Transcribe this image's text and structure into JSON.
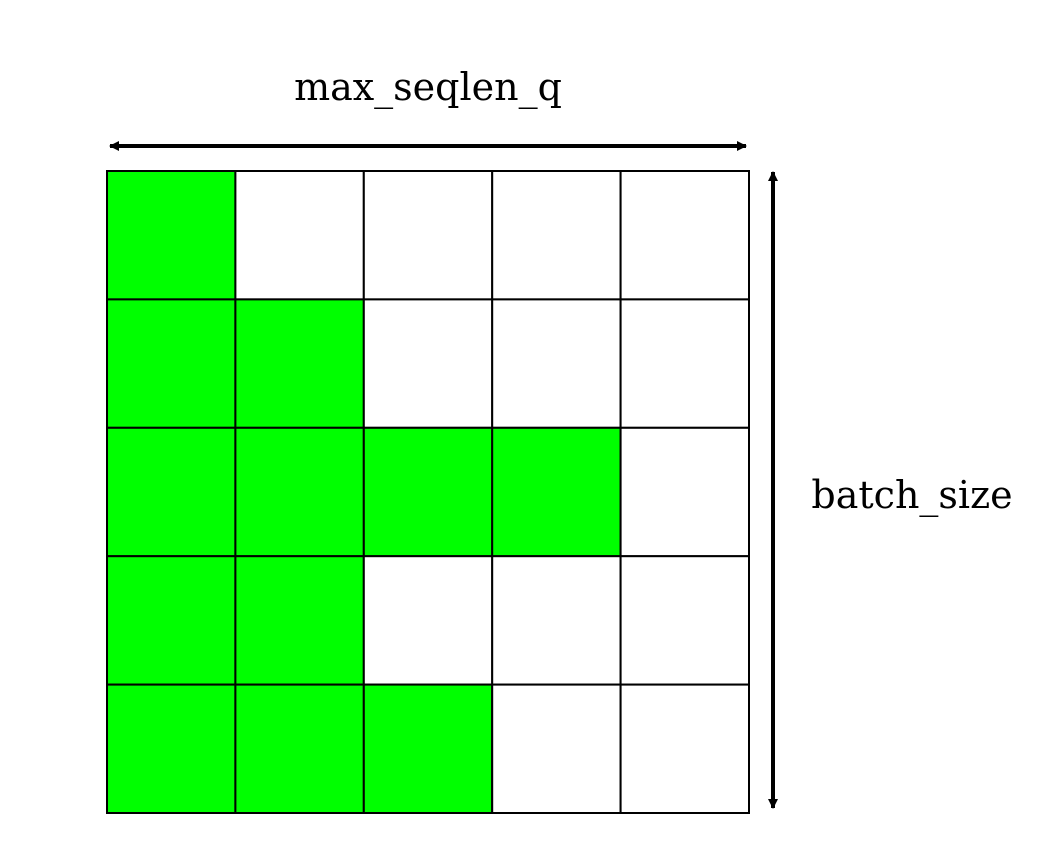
{
  "diagram": {
    "top_label": "max_seqlen_q",
    "side_label": "batch_size",
    "rows": [
      {
        "filled": 1
      },
      {
        "filled": 2
      },
      {
        "filled": 4
      },
      {
        "filled": 2
      },
      {
        "filled": 3
      }
    ],
    "columns": 5,
    "fill_color": "#00ff00",
    "empty_color": "#ffffff",
    "line_color": "#000000"
  }
}
